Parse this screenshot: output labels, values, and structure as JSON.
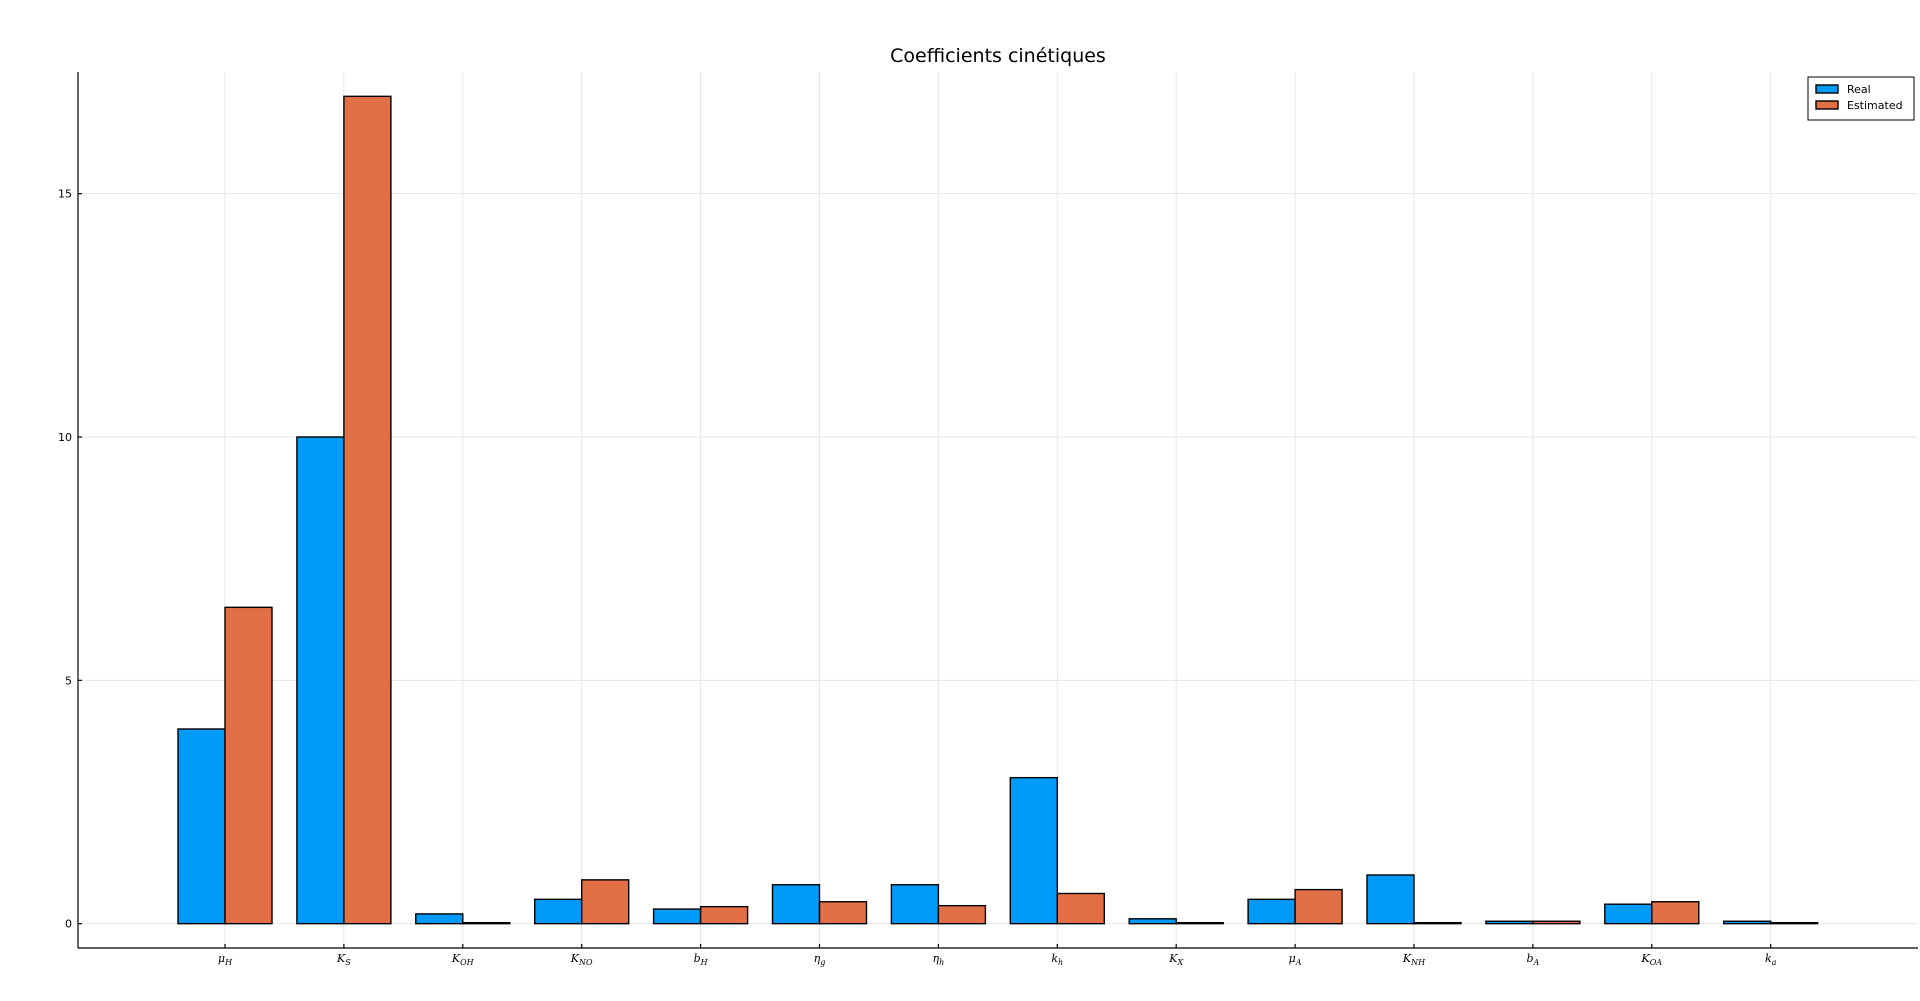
{
  "colors": {
    "real": "#009af9",
    "estimated": "#e26f46",
    "grid": "#e6e6e6",
    "axis": "#000000",
    "background": "#ffffff"
  },
  "chart_data": {
    "type": "bar",
    "title": "Coefficients cinétiques",
    "xlabel": "",
    "ylabel": "",
    "ylim": [
      -0.5,
      17.5
    ],
    "yticks": [
      0,
      5,
      10,
      15
    ],
    "grid": true,
    "legend_position": "top-right",
    "categories": [
      {
        "base": "μ",
        "sub": "H"
      },
      {
        "base": "K",
        "sub": "S"
      },
      {
        "base": "K",
        "sub": "OH"
      },
      {
        "base": "K",
        "sub": "NO"
      },
      {
        "base": "b",
        "sub": "H"
      },
      {
        "base": "η",
        "sub": "g"
      },
      {
        "base": "η",
        "sub": "h"
      },
      {
        "base": "k",
        "sub": "h"
      },
      {
        "base": "K",
        "sub": "X"
      },
      {
        "base": "μ",
        "sub": "A"
      },
      {
        "base": "K",
        "sub": "NH"
      },
      {
        "base": "b",
        "sub": "A"
      },
      {
        "base": "K",
        "sub": "OA"
      },
      {
        "base": "k",
        "sub": "a"
      }
    ],
    "series": [
      {
        "name": "Real",
        "values": [
          4.0,
          10.0,
          0.2,
          0.5,
          0.3,
          0.8,
          0.8,
          3.0,
          0.1,
          0.5,
          1.0,
          0.05,
          0.4,
          0.05
        ]
      },
      {
        "name": "Estimated",
        "values": [
          6.5,
          17.0,
          0.02,
          0.9,
          0.35,
          0.45,
          0.37,
          0.62,
          0.02,
          0.7,
          0.02,
          0.05,
          0.45,
          0.02
        ]
      }
    ]
  }
}
